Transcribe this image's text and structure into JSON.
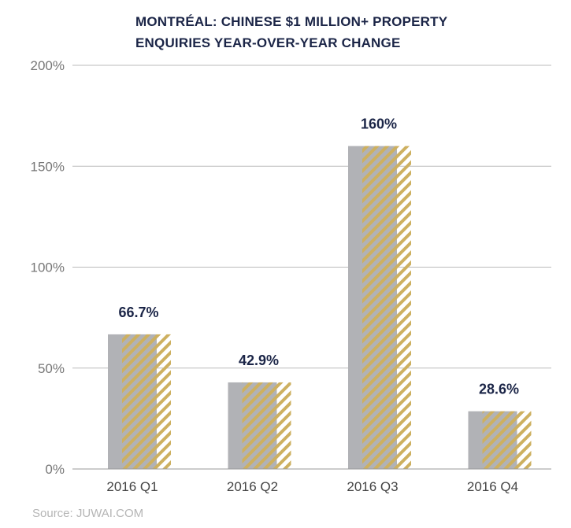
{
  "chart_data": {
    "type": "bar",
    "title_lines": [
      "MONTRÉAL: CHINESE $1 MILLION+ PROPERTY",
      "ENQUIRIES YEAR-OVER-YEAR CHANGE"
    ],
    "categories": [
      "2016 Q1",
      "2016 Q2",
      "2016 Q3",
      "2016 Q4"
    ],
    "values": [
      66.7,
      42.9,
      160,
      28.6
    ],
    "data_labels": [
      "66.7%",
      "42.9%",
      "160%",
      "28.6%"
    ],
    "yticks": [
      0,
      50,
      100,
      150,
      200
    ],
    "ytick_labels": [
      "0%",
      "50%",
      "100%",
      "150%",
      "200%"
    ],
    "ylim": [
      0,
      200
    ],
    "xlabel": "",
    "ylabel": "",
    "grid": true,
    "colors": {
      "bar": "#b1b2b6",
      "hatch": "#cdb060",
      "title": "#1b2547",
      "label": "#1b2547",
      "axis_text": "#777777",
      "grid": "#bbbbbb"
    }
  },
  "source": "Source: JUWAI.COM"
}
